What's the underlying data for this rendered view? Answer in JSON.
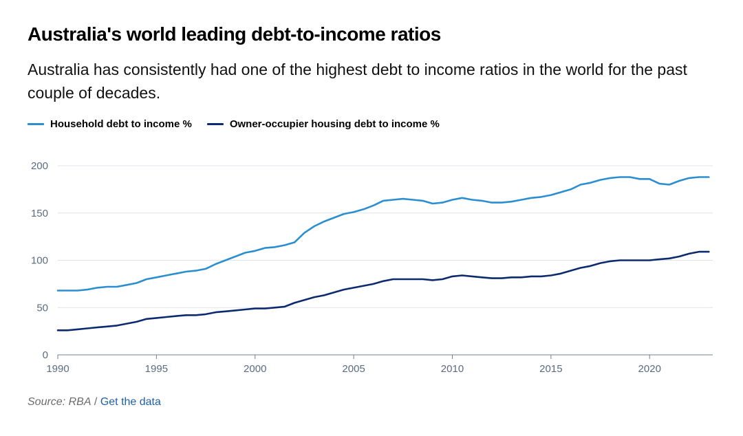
{
  "header": {
    "title": "Australia's world leading debt-to-income ratios",
    "subtitle": "Australia has consistently had one of the highest debt to income ratios in the world for the past couple of decades."
  },
  "footer": {
    "source_label": "Source: RBA",
    "separator": " / ",
    "data_link": "Get the data"
  },
  "chart_data": {
    "type": "line",
    "title": "Australia's world leading debt-to-income ratios",
    "xlabel": "",
    "ylabel": "",
    "xlim": [
      1990,
      2023.2
    ],
    "ylim": [
      0,
      200
    ],
    "x_ticks": [
      1990,
      1995,
      2000,
      2005,
      2010,
      2015,
      2020
    ],
    "y_ticks": [
      0,
      50,
      100,
      150,
      200
    ],
    "grid": "horizontal",
    "legend_position": "top-left",
    "series": [
      {
        "name": "Household debt to income %",
        "color": "#2a8ed0",
        "points": [
          [
            1990.0,
            68
          ],
          [
            1990.5,
            68
          ],
          [
            1991.0,
            68
          ],
          [
            1991.5,
            69
          ],
          [
            1992.0,
            71
          ],
          [
            1992.5,
            72
          ],
          [
            1993.0,
            72
          ],
          [
            1993.5,
            74
          ],
          [
            1994.0,
            76
          ],
          [
            1994.5,
            80
          ],
          [
            1995.0,
            82
          ],
          [
            1995.5,
            84
          ],
          [
            1996.0,
            86
          ],
          [
            1996.5,
            88
          ],
          [
            1997.0,
            89
          ],
          [
            1997.5,
            91
          ],
          [
            1998.0,
            96
          ],
          [
            1998.5,
            100
          ],
          [
            1999.0,
            104
          ],
          [
            1999.5,
            108
          ],
          [
            2000.0,
            110
          ],
          [
            2000.5,
            113
          ],
          [
            2001.0,
            114
          ],
          [
            2001.5,
            116
          ],
          [
            2002.0,
            119
          ],
          [
            2002.5,
            129
          ],
          [
            2003.0,
            136
          ],
          [
            2003.5,
            141
          ],
          [
            2004.0,
            145
          ],
          [
            2004.5,
            149
          ],
          [
            2005.0,
            151
          ],
          [
            2005.5,
            154
          ],
          [
            2006.0,
            158
          ],
          [
            2006.5,
            163
          ],
          [
            2007.0,
            164
          ],
          [
            2007.5,
            165
          ],
          [
            2008.0,
            164
          ],
          [
            2008.5,
            163
          ],
          [
            2009.0,
            160
          ],
          [
            2009.5,
            161
          ],
          [
            2010.0,
            164
          ],
          [
            2010.5,
            166
          ],
          [
            2011.0,
            164
          ],
          [
            2011.5,
            163
          ],
          [
            2012.0,
            161
          ],
          [
            2012.5,
            161
          ],
          [
            2013.0,
            162
          ],
          [
            2013.5,
            164
          ],
          [
            2014.0,
            166
          ],
          [
            2014.5,
            167
          ],
          [
            2015.0,
            169
          ],
          [
            2015.5,
            172
          ],
          [
            2016.0,
            175
          ],
          [
            2016.5,
            180
          ],
          [
            2017.0,
            182
          ],
          [
            2017.5,
            185
          ],
          [
            2018.0,
            187
          ],
          [
            2018.5,
            188
          ],
          [
            2019.0,
            188
          ],
          [
            2019.5,
            186
          ],
          [
            2020.0,
            186
          ],
          [
            2020.5,
            181
          ],
          [
            2021.0,
            180
          ],
          [
            2021.5,
            184
          ],
          [
            2022.0,
            187
          ],
          [
            2022.5,
            188
          ],
          [
            2023.0,
            188
          ]
        ]
      },
      {
        "name": "Owner-occupier housing debt to income %",
        "color": "#0b2a6f",
        "points": [
          [
            1990.0,
            26
          ],
          [
            1990.5,
            26
          ],
          [
            1991.0,
            27
          ],
          [
            1991.5,
            28
          ],
          [
            1992.0,
            29
          ],
          [
            1992.5,
            30
          ],
          [
            1993.0,
            31
          ],
          [
            1993.5,
            33
          ],
          [
            1994.0,
            35
          ],
          [
            1994.5,
            38
          ],
          [
            1995.0,
            39
          ],
          [
            1995.5,
            40
          ],
          [
            1996.0,
            41
          ],
          [
            1996.5,
            42
          ],
          [
            1997.0,
            42
          ],
          [
            1997.5,
            43
          ],
          [
            1998.0,
            45
          ],
          [
            1998.5,
            46
          ],
          [
            1999.0,
            47
          ],
          [
            1999.5,
            48
          ],
          [
            2000.0,
            49
          ],
          [
            2000.5,
            49
          ],
          [
            2001.0,
            50
          ],
          [
            2001.5,
            51
          ],
          [
            2002.0,
            55
          ],
          [
            2002.5,
            58
          ],
          [
            2003.0,
            61
          ],
          [
            2003.5,
            63
          ],
          [
            2004.0,
            66
          ],
          [
            2004.5,
            69
          ],
          [
            2005.0,
            71
          ],
          [
            2005.5,
            73
          ],
          [
            2006.0,
            75
          ],
          [
            2006.5,
            78
          ],
          [
            2007.0,
            80
          ],
          [
            2007.5,
            80
          ],
          [
            2008.0,
            80
          ],
          [
            2008.5,
            80
          ],
          [
            2009.0,
            79
          ],
          [
            2009.5,
            80
          ],
          [
            2010.0,
            83
          ],
          [
            2010.5,
            84
          ],
          [
            2011.0,
            83
          ],
          [
            2011.5,
            82
          ],
          [
            2012.0,
            81
          ],
          [
            2012.5,
            81
          ],
          [
            2013.0,
            82
          ],
          [
            2013.5,
            82
          ],
          [
            2014.0,
            83
          ],
          [
            2014.5,
            83
          ],
          [
            2015.0,
            84
          ],
          [
            2015.5,
            86
          ],
          [
            2016.0,
            89
          ],
          [
            2016.5,
            92
          ],
          [
            2017.0,
            94
          ],
          [
            2017.5,
            97
          ],
          [
            2018.0,
            99
          ],
          [
            2018.5,
            100
          ],
          [
            2019.0,
            100
          ],
          [
            2019.5,
            100
          ],
          [
            2020.0,
            100
          ],
          [
            2020.5,
            101
          ],
          [
            2021.0,
            102
          ],
          [
            2021.5,
            104
          ],
          [
            2022.0,
            107
          ],
          [
            2022.5,
            109
          ],
          [
            2023.0,
            109
          ]
        ]
      }
    ]
  }
}
